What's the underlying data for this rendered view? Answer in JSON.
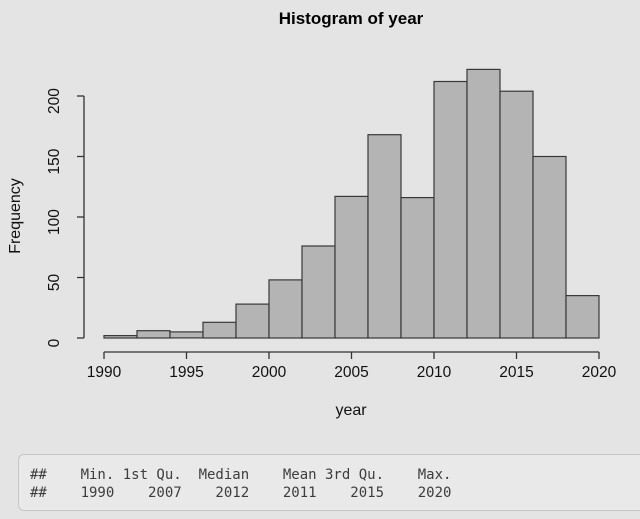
{
  "chart_data": {
    "type": "bar",
    "subtype": "histogram",
    "title": "Histogram of year",
    "xlabel": "year",
    "ylabel": "Frequency",
    "bin_edges": [
      1990,
      1992,
      1994,
      1996,
      1998,
      2000,
      2002,
      2004,
      2006,
      2008,
      2010,
      2012,
      2014,
      2016,
      2018,
      2020
    ],
    "counts": [
      2,
      6,
      5,
      13,
      28,
      48,
      76,
      117,
      168,
      116,
      212,
      222,
      204,
      150,
      35
    ],
    "xticks": [
      1990,
      1995,
      2000,
      2005,
      2010,
      2015,
      2020
    ],
    "yticks": [
      0,
      50,
      100,
      150,
      200
    ],
    "xlim": [
      1990,
      2020
    ],
    "ylim": [
      0,
      230
    ],
    "grid": false,
    "legend": null,
    "bar_fill": "#b4b4b4",
    "bar_border": "#383838",
    "axis_color": "#333333"
  },
  "console": {
    "lines": [
      "##    Min. 1st Qu.  Median    Mean 3rd Qu.    Max. ",
      "##    1990    2007    2012    2011    2015    2020 "
    ]
  }
}
